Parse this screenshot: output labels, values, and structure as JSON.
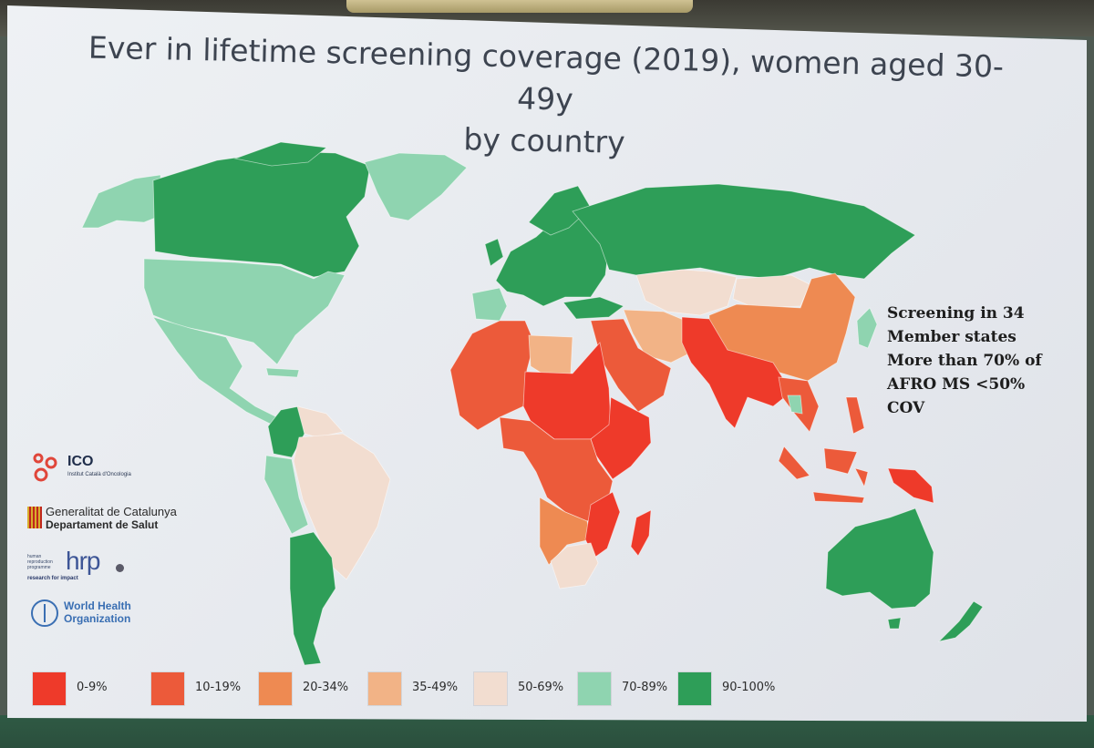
{
  "slide": {
    "title_line1": "Ever in lifetime screening coverage (2019), women aged 30-49y",
    "title_line2": "by country"
  },
  "annotation": {
    "lines": [
      "Screening in 34",
      "Member states",
      "More than 70% of",
      "AFRO  MS <50%",
      "COV"
    ]
  },
  "legend": {
    "items": [
      {
        "label": "0-9%",
        "color": "#ee3a2a"
      },
      {
        "label": "10-19%",
        "color": "#ec5a3a"
      },
      {
        "label": "20-34%",
        "color": "#ee8a52"
      },
      {
        "label": "35-49%",
        "color": "#f2b386"
      },
      {
        "label": "50-69%",
        "color": "#f2ddd0"
      },
      {
        "label": "70-89%",
        "color": "#8fd4b0"
      },
      {
        "label": "90-100%",
        "color": "#2e9e58"
      }
    ]
  },
  "logos": {
    "ico_name": "ICO",
    "ico_subtitle": "Institut Català d'Oncologia",
    "generalitat_line1": "Generalitat de Catalunya",
    "generalitat_line2": "Departament de Salut",
    "hrp_name": "hrp",
    "hrp_small": "human reproduction programme",
    "hrp_tagline": "research for impact",
    "who_name": "World Health Organization"
  },
  "map_regions": {
    "canada": "90-100%",
    "alaska": "70-89%",
    "greenland": "70-89%",
    "usa": "70-89%",
    "mexico_central_america": "70-89%",
    "colombia": "90-100%",
    "brazil": "50-69%",
    "andes": "70-89%",
    "argentina_chile": "90-100%",
    "europe": "90-100%",
    "iberia": "70-89%",
    "russia": "90-100%",
    "central_asia": "50-69%",
    "china": "20-34%",
    "iran_region": "35-49%",
    "saudi_arabia": "10-19%",
    "south_asia": "0-9%",
    "north_west_africa": "10-19%",
    "egypt_sahel": "0-9%",
    "east_africa": "0-9%",
    "central_africa": "10-19%",
    "southern_africa": "20-34%",
    "south_africa": "50-69%",
    "madagascar": "0-9%",
    "southeast_asia": "10-19%",
    "indonesia": "10-19%",
    "papua": "0-9%",
    "australia": "90-100%",
    "new_zealand": "90-100%",
    "japan": "70-89%"
  }
}
